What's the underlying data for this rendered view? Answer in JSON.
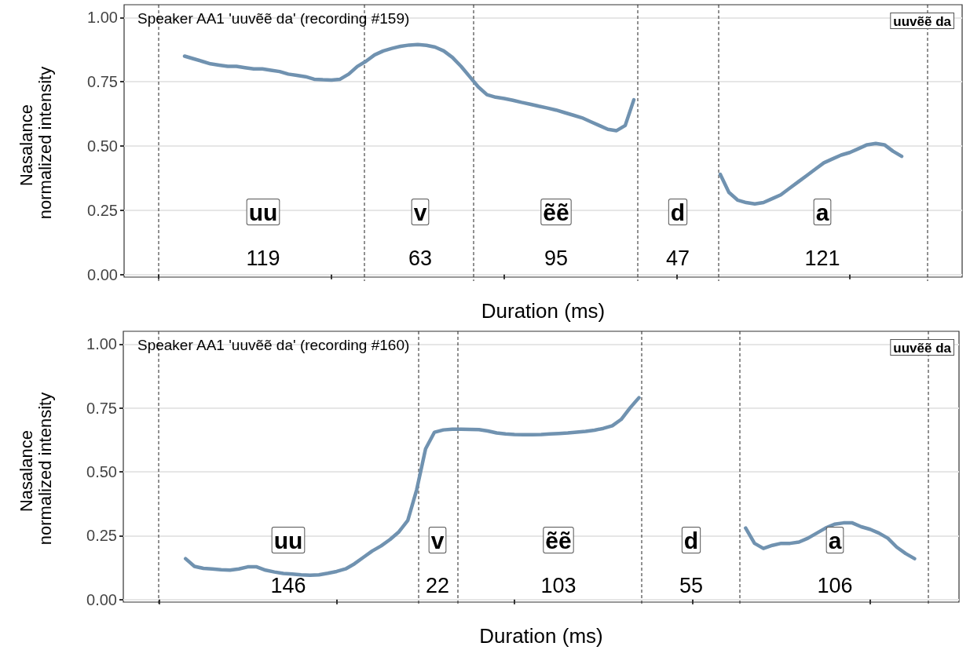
{
  "chart_data": [
    {
      "type": "line",
      "title": "Speaker AA1 'uuvẽẽ da' (recording #159)",
      "xlabel": "Duration (ms)",
      "ylabel": "Nasalance normalized intensity",
      "categories": [
        null,
        null,
        null,
        null,
        null,
        null,
        null,
        null,
        null,
        null,
        null,
        null,
        null,
        null,
        null,
        null,
        null,
        null,
        null,
        null,
        null,
        null,
        null,
        null,
        null,
        null,
        null,
        null,
        null,
        null,
        null,
        null,
        null,
        null,
        null,
        null,
        null,
        null,
        null,
        null,
        null,
        null,
        null,
        null,
        null,
        null,
        null,
        null,
        null,
        null,
        null,
        null,
        null,
        null,
        null,
        null,
        null,
        null,
        null,
        null,
        null,
        null,
        null,
        null,
        null,
        null,
        null,
        null,
        null,
        null,
        null,
        null,
        null,
        null,
        null,
        null,
        null,
        null,
        null,
        null,
        null,
        null,
        null,
        null,
        null,
        null,
        null,
        null,
        null,
        null,
        null,
        null,
        null,
        null,
        null,
        null,
        null,
        null
      ],
      "series": [
        {
          "color": "#7092b0",
          "values": [
            null,
            null,
            null,
            null,
            null,
            null,
            null,
            0.85,
            0.84,
            0.83,
            0.82,
            0.815,
            0.81,
            0.81,
            0.805,
            0.8,
            0.8,
            0.795,
            0.79,
            0.78,
            0.775,
            0.77,
            0.76,
            0.758,
            0.757,
            0.76,
            0.78,
            0.81,
            0.83,
            0.855,
            0.87,
            0.88,
            0.888,
            0.893,
            0.895,
            0.892,
            0.885,
            0.87,
            0.845,
            0.81,
            0.77,
            0.73,
            0.7,
            0.69,
            0.685,
            0.678,
            0.67,
            0.663,
            0.655,
            0.648,
            0.64,
            0.63,
            0.62,
            0.61,
            0.595,
            0.58,
            0.565,
            0.56,
            0.58,
            0.68,
            null,
            null,
            null,
            null,
            null,
            null,
            null,
            null,
            null,
            null,
            null,
            null,
            null,
            null,
            null,
            null,
            null,
            null,
            null,
            null,
            null,
            null,
            null,
            null,
            null,
            null,
            null,
            null,
            null,
            null,
            null,
            null,
            null,
            null,
            null,
            null,
            null,
            null
          ]
        },
        {
          "color": "#7092b0",
          "values": [
            null,
            null,
            null,
            null,
            null,
            null,
            null,
            null,
            null,
            null,
            null,
            null,
            null,
            null,
            null,
            null,
            null,
            null,
            null,
            null,
            null,
            null,
            null,
            null,
            null,
            null,
            null,
            null,
            null,
            null,
            null,
            null,
            null,
            null,
            null,
            null,
            null,
            null,
            null,
            null,
            null,
            null,
            null,
            null,
            null,
            null,
            null,
            null,
            null,
            null,
            null,
            null,
            null,
            null,
            null,
            null,
            null,
            null,
            null,
            null,
            null,
            null,
            null,
            null,
            null,
            null,
            null,
            null,
            null,
            0.39,
            0.32,
            0.29,
            0.28,
            0.275,
            0.28,
            0.295,
            0.31,
            0.335,
            0.36,
            0.385,
            0.41,
            0.435,
            0.45,
            0.465,
            0.475,
            0.49,
            0.505,
            0.51,
            0.505,
            0.48,
            0.46,
            null,
            null,
            null,
            null,
            null,
            null,
            null
          ]
        }
      ],
      "ylim": [
        -0.01,
        1.05
      ],
      "yticks": [
        {
          "value": 0,
          "label": "0.00"
        },
        {
          "value": 0.25,
          "label": "0.25"
        },
        {
          "value": 0.5,
          "label": "0.50"
        },
        {
          "value": 0.75,
          "label": "0.75"
        },
        {
          "value": 1,
          "label": "1.00"
        }
      ],
      "tick_labels": "y",
      "grid": "y",
      "marker": "none",
      "line_style": "solid",
      "annotations": [
        "uu",
        "119",
        "v",
        "63",
        "ẽẽ",
        "95",
        "d",
        "47",
        "a",
        "121",
        "uuvẽẽ da"
      ]
    },
    {
      "type": "line",
      "title": "Speaker AA1 'uuvẽẽ da' (recording #160)",
      "xlabel": "Duration (ms)",
      "ylabel": "Nasalance normalized intensity",
      "categories": [
        null,
        null,
        null,
        null,
        null,
        null,
        null,
        null,
        null,
        null,
        null,
        null,
        null,
        null,
        null,
        null,
        null,
        null,
        null,
        null,
        null,
        null,
        null,
        null,
        null,
        null,
        null,
        null,
        null,
        null,
        null,
        null,
        null,
        null,
        null,
        null,
        null,
        null,
        null,
        null,
        null,
        null,
        null,
        null,
        null,
        null,
        null,
        null,
        null,
        null,
        null,
        null,
        null,
        null,
        null,
        null,
        null,
        null,
        null,
        null,
        null,
        null,
        null,
        null,
        null,
        null,
        null,
        null,
        null,
        null,
        null,
        null,
        null,
        null,
        null,
        null,
        null,
        null,
        null,
        null,
        null,
        null,
        null,
        null,
        null,
        null,
        null,
        null,
        null,
        null,
        null,
        null,
        null,
        null,
        null
      ],
      "series": [
        {
          "color": "#7092b0",
          "values": [
            null,
            null,
            null,
            null,
            null,
            null,
            null,
            0.16,
            0.13,
            0.122,
            0.12,
            0.117,
            0.115,
            0.12,
            0.128,
            0.128,
            0.115,
            0.108,
            0.102,
            0.1,
            0.097,
            0.095,
            0.097,
            0.103,
            0.11,
            0.12,
            0.14,
            0.165,
            0.19,
            0.21,
            0.235,
            0.265,
            0.31,
            0.43,
            0.59,
            0.655,
            0.664,
            0.667,
            0.667,
            0.666,
            0.665,
            0.66,
            0.652,
            0.648,
            0.646,
            0.645,
            0.645,
            0.646,
            0.648,
            0.65,
            0.652,
            0.655,
            0.658,
            0.663,
            0.67,
            0.68,
            0.705,
            0.75,
            0.79,
            null,
            null,
            null,
            null,
            null,
            null,
            null,
            null,
            null,
            null,
            null,
            null,
            null,
            null,
            null,
            null,
            null,
            null,
            null,
            null,
            null,
            null,
            null,
            null,
            null,
            null,
            null,
            null,
            null,
            null,
            null,
            null,
            null,
            null,
            null,
            null
          ]
        },
        {
          "color": "#7092b0",
          "values": [
            null,
            null,
            null,
            null,
            null,
            null,
            null,
            null,
            null,
            null,
            null,
            null,
            null,
            null,
            null,
            null,
            null,
            null,
            null,
            null,
            null,
            null,
            null,
            null,
            null,
            null,
            null,
            null,
            null,
            null,
            null,
            null,
            null,
            null,
            null,
            null,
            null,
            null,
            null,
            null,
            null,
            null,
            null,
            null,
            null,
            null,
            null,
            null,
            null,
            null,
            null,
            null,
            null,
            null,
            null,
            null,
            null,
            null,
            null,
            null,
            null,
            null,
            null,
            null,
            null,
            null,
            null,
            null,
            null,
            null,
            0.28,
            0.22,
            0.2,
            0.212,
            0.22,
            0.22,
            0.225,
            0.24,
            0.26,
            0.28,
            0.295,
            0.3,
            0.3,
            0.285,
            0.275,
            0.26,
            0.24,
            0.205,
            0.18,
            0.16,
            null,
            null,
            null,
            null,
            null
          ]
        }
      ],
      "ylim": [
        -0.01,
        1.05
      ],
      "yticks": [
        {
          "value": 0,
          "label": "0.00"
        },
        {
          "value": 0.25,
          "label": "0.25"
        },
        {
          "value": 0.5,
          "label": "0.50"
        },
        {
          "value": 0.75,
          "label": "0.75"
        },
        {
          "value": 1,
          "label": "1.00"
        }
      ],
      "tick_labels": "y",
      "grid": "y",
      "marker": "none",
      "line_style": "solid",
      "annotations": [
        "uu",
        "146",
        "v",
        "22",
        "ẽẽ",
        "103",
        "d",
        "55",
        "a",
        "106",
        "uuvẽẽ da"
      ]
    }
  ]
}
